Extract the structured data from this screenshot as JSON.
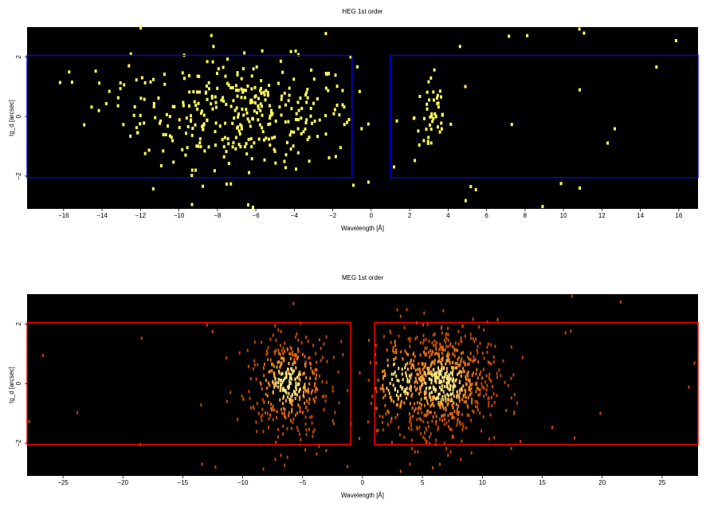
{
  "chart_data": [
    {
      "type": "heatmap",
      "title": "HEG 1st order",
      "xlabel": "Wavelength [Å]",
      "ylabel": "tg_d [arcsec]",
      "xlim": [
        -17.9,
        17.0
      ],
      "ylim": [
        -3.1,
        3.0
      ],
      "xticks": [
        -16,
        -14,
        -12,
        -10,
        -8,
        -6,
        -4,
        -2,
        0,
        2,
        4,
        6,
        8,
        10,
        12,
        14,
        16
      ],
      "xtick_labels": [
        "−16",
        "−14",
        "−12",
        "−10",
        "−8",
        "−6",
        "−4",
        "−2",
        "0",
        "2",
        "4",
        "6",
        "8",
        "10",
        "12",
        "14",
        "16"
      ],
      "yticks": [
        -2,
        0,
        2
      ],
      "ytick_labels": [
        "−2",
        "0",
        "2"
      ],
      "background": "#000000",
      "colormap": "yellow",
      "event_color": "#ffff55",
      "grid": false,
      "regions": [
        {
          "x0": -17.9,
          "x1": -1.0,
          "y0": -2.05,
          "y1": 2.05,
          "color": "#0000ff"
        },
        {
          "x0": 1.0,
          "x1": 17.0,
          "y0": -2.05,
          "y1": 2.05,
          "color": "#0000ff"
        }
      ],
      "clusters": [
        {
          "cx": -6.5,
          "cy": 0.1,
          "sx": 2.8,
          "sy": 0.9,
          "n": 320
        },
        {
          "cx": 3.1,
          "cy": 0.0,
          "sx": 0.45,
          "sy": 0.8,
          "n": 45
        },
        {
          "cx": -12.0,
          "cy": 0.2,
          "sx": 2.5,
          "sy": 0.9,
          "n": 30
        }
      ],
      "background_events": 40
    },
    {
      "type": "heatmap",
      "title": "MEG 1st order",
      "xlabel": "Wavelength [Å]",
      "ylabel": "tg_d [arcsec]",
      "xlim": [
        -28.0,
        28.0
      ],
      "ylim": [
        -3.1,
        3.0
      ],
      "xticks": [
        -25,
        -20,
        -15,
        -10,
        -5,
        0,
        5,
        10,
        15,
        20,
        25
      ],
      "xtick_labels": [
        "−25",
        "−20",
        "−15",
        "−10",
        "−5",
        "0",
        "5",
        "10",
        "15",
        "20",
        "25"
      ],
      "yticks": [
        -2,
        0,
        2
      ],
      "ytick_labels": [
        "−2",
        "0",
        "2"
      ],
      "background": "#000000",
      "colormap": "hot",
      "event_colors": [
        "#c24a00",
        "#e0680d",
        "#f58a1f",
        "#ffb347",
        "#ffe680"
      ],
      "grid": false,
      "regions": [
        {
          "x0": -28.0,
          "x1": -1.0,
          "y0": -2.05,
          "y1": 2.05,
          "color": "#ff0000"
        },
        {
          "x0": 1.0,
          "x1": 28.0,
          "y0": -2.05,
          "y1": 2.05,
          "color": "#ff0000"
        }
      ],
      "clusters": [
        {
          "cx": -6.3,
          "cy": 0.0,
          "sx": 1.8,
          "sy": 0.85,
          "n": 380
        },
        {
          "cx": 6.6,
          "cy": 0.0,
          "sx": 2.3,
          "sy": 0.9,
          "n": 720
        },
        {
          "cx": 3.0,
          "cy": 0.1,
          "sx": 1.5,
          "sy": 0.9,
          "n": 90
        }
      ],
      "background_events": 35
    }
  ]
}
